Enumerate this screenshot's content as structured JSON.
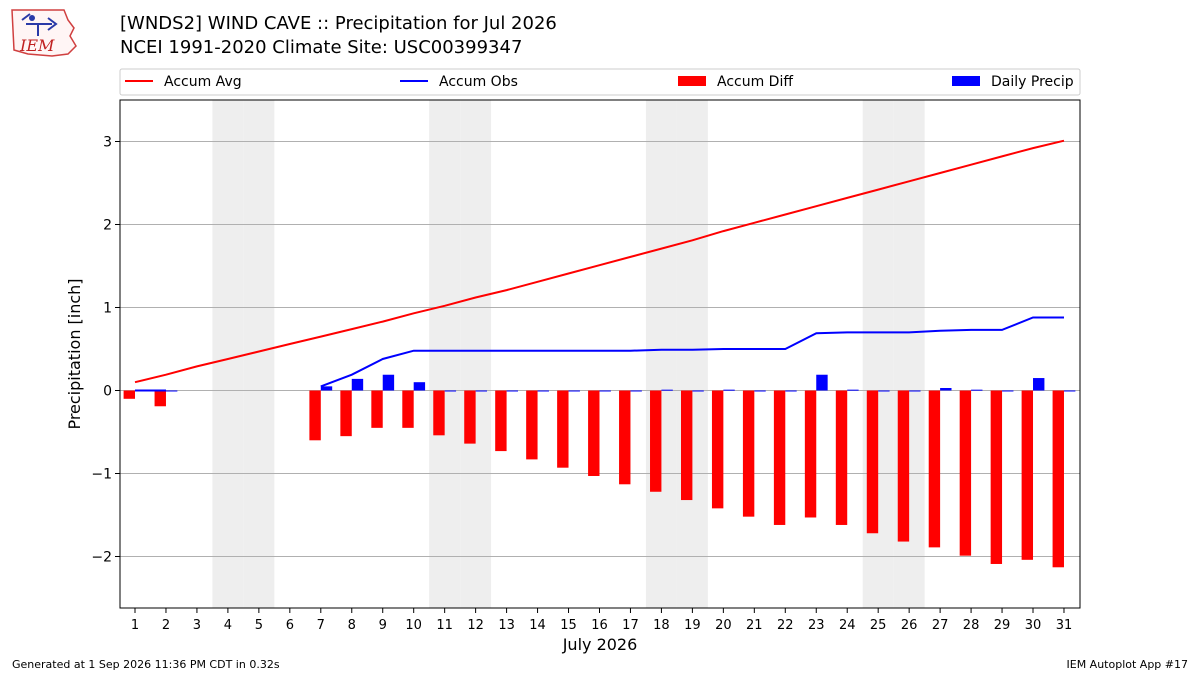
{
  "header": {
    "logo_text": "IEM",
    "title_line1": "[WNDS2] WIND CAVE :: Precipitation for Jul 2026",
    "title_line2": "NCEI 1991-2020 Climate Site: USC00399347"
  },
  "footer": {
    "left": "Generated at 1 Sep 2026 11:36 PM CDT in 0.32s",
    "right": "IEM Autoplot App #17"
  },
  "colors": {
    "avg": "#ff0000",
    "obs": "#0000ff",
    "diff": "#ff0000",
    "daily": "#0000ff",
    "weekend": "#eeeeee",
    "grid": "#b0b0b0"
  },
  "chart_data": {
    "type": "bar",
    "xlabel": "July 2026",
    "ylabel": "Precipitation [inch]",
    "ylim": [
      -2.6,
      3.5
    ],
    "yticks": [
      3,
      2,
      1,
      0,
      -1,
      -2
    ],
    "ytick_labels": [
      "3",
      "2",
      "1",
      "0",
      "−1",
      "−2"
    ],
    "grid": true,
    "legend_position": "top",
    "weekend_days": [
      4,
      5,
      11,
      12,
      18,
      19,
      25,
      26
    ],
    "days": [
      1,
      2,
      3,
      4,
      5,
      6,
      7,
      8,
      9,
      10,
      11,
      12,
      13,
      14,
      15,
      16,
      17,
      18,
      19,
      20,
      21,
      22,
      23,
      24,
      25,
      26,
      27,
      28,
      29,
      30,
      31
    ],
    "series": [
      {
        "name": "Accum Avg",
        "kind": "line",
        "color": "#ff0000",
        "values": [
          0.1,
          0.19,
          0.29,
          0.38,
          0.47,
          0.56,
          0.65,
          0.74,
          0.83,
          0.93,
          1.02,
          1.12,
          1.21,
          1.31,
          1.41,
          1.51,
          1.61,
          1.71,
          1.81,
          1.92,
          2.02,
          2.12,
          2.22,
          2.32,
          2.42,
          2.52,
          2.62,
          2.72,
          2.82,
          2.92,
          3.01
        ]
      },
      {
        "name": "Accum Obs",
        "kind": "line",
        "color": "#0000ff",
        "values": [
          0.0,
          0.0,
          null,
          null,
          null,
          null,
          0.05,
          0.19,
          0.38,
          0.48,
          0.48,
          0.48,
          0.48,
          0.48,
          0.48,
          0.48,
          0.48,
          0.49,
          0.49,
          0.5,
          0.5,
          0.5,
          0.69,
          0.7,
          0.7,
          0.7,
          0.72,
          0.73,
          0.73,
          0.88,
          0.88
        ]
      },
      {
        "name": "Accum Diff",
        "kind": "bar",
        "color": "#ff0000",
        "values": [
          -0.1,
          -0.19,
          null,
          null,
          null,
          null,
          -0.6,
          -0.55,
          -0.45,
          -0.45,
          -0.54,
          -0.64,
          -0.73,
          -0.83,
          -0.93,
          -1.03,
          -1.13,
          -1.22,
          -1.32,
          -1.42,
          -1.52,
          -1.62,
          -1.53,
          -1.62,
          -1.72,
          -1.82,
          -1.89,
          -1.99,
          -2.09,
          -2.04,
          -2.13
        ]
      },
      {
        "name": "Daily Precip",
        "kind": "bar",
        "color": "#0000ff",
        "values": [
          0.0,
          0.0,
          null,
          null,
          null,
          null,
          0.05,
          0.14,
          0.19,
          0.1,
          0.0,
          0.0,
          0.0,
          0.0,
          0.0,
          0.0,
          0.0,
          0.01,
          0.0,
          0.01,
          0.0,
          0.0,
          0.19,
          0.01,
          0.0,
          0.0,
          0.03,
          0.01,
          0.0,
          0.15,
          0.0
        ]
      }
    ]
  }
}
